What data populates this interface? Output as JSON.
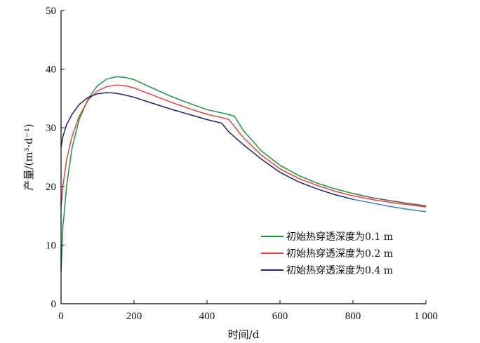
{
  "chart_data": {
    "type": "line",
    "xlabel": "时间/d",
    "ylabel": "产量/(m³·d⁻¹)",
    "xlim": [
      0,
      1000
    ],
    "ylim": [
      0,
      50
    ],
    "xticks": [
      0,
      200,
      400,
      600,
      800,
      1000
    ],
    "xtick_labels": [
      "0",
      "200",
      "400",
      "600",
      "800",
      "1 000"
    ],
    "yticks": [
      0,
      10,
      20,
      30,
      40,
      50
    ],
    "ytick_labels": [
      "0",
      "10",
      "20",
      "30",
      "40",
      "50"
    ],
    "grid": false,
    "legend_position": "lower-right",
    "series": [
      {
        "name": "初始热穿透深度为0.1 m",
        "color": "#1a9641",
        "tail_color": "#555555",
        "x": [
          0,
          5,
          15,
          30,
          50,
          75,
          100,
          125,
          150,
          175,
          200,
          250,
          300,
          350,
          400,
          450,
          475,
          500,
          550,
          600,
          650,
          700,
          750,
          800,
          850,
          900,
          950,
          1000
        ],
        "y": [
          5.5,
          13,
          20,
          26.5,
          31.5,
          35,
          37.2,
          38.3,
          38.7,
          38.6,
          38.2,
          36.8,
          35.4,
          34.2,
          33.1,
          32.4,
          32.0,
          29.5,
          26.0,
          23.6,
          21.9,
          20.6,
          19.6,
          18.8,
          18.1,
          17.6,
          17.1,
          16.7
        ]
      },
      {
        "name": "初始热穿透深度为0.2 m",
        "color": "#e8413c",
        "tail_color": "#e8413c",
        "x": [
          0,
          5,
          15,
          30,
          50,
          75,
          100,
          125,
          150,
          175,
          200,
          250,
          300,
          350,
          400,
          450,
          460,
          500,
          550,
          600,
          650,
          700,
          750,
          800,
          850,
          900,
          950,
          1000
        ],
        "y": [
          16.5,
          20,
          24.5,
          28.5,
          32,
          34.8,
          36.3,
          37.0,
          37.3,
          37.2,
          36.8,
          35.6,
          34.4,
          33.3,
          32.3,
          31.6,
          31.4,
          28.3,
          25.3,
          23.0,
          21.4,
          20.2,
          19.2,
          18.4,
          17.8,
          17.3,
          16.9,
          16.5
        ]
      },
      {
        "name": "初始热穿透深度为0.4 m",
        "color": "#1f1f7a",
        "tail_color": "#3b7dd8",
        "x": [
          0,
          5,
          15,
          30,
          50,
          75,
          100,
          125,
          150,
          175,
          200,
          250,
          300,
          350,
          400,
          440,
          460,
          500,
          550,
          600,
          650,
          700,
          750,
          800,
          850,
          900,
          950,
          1000
        ],
        "y": [
          26.7,
          28.5,
          30.5,
          32.3,
          34.0,
          35.2,
          35.8,
          36.0,
          35.9,
          35.6,
          35.2,
          34.2,
          33.2,
          32.3,
          31.4,
          30.8,
          29.3,
          27.1,
          24.6,
          22.4,
          20.8,
          19.6,
          18.6,
          17.8,
          17.2,
          16.6,
          16.1,
          15.7
        ]
      }
    ]
  }
}
